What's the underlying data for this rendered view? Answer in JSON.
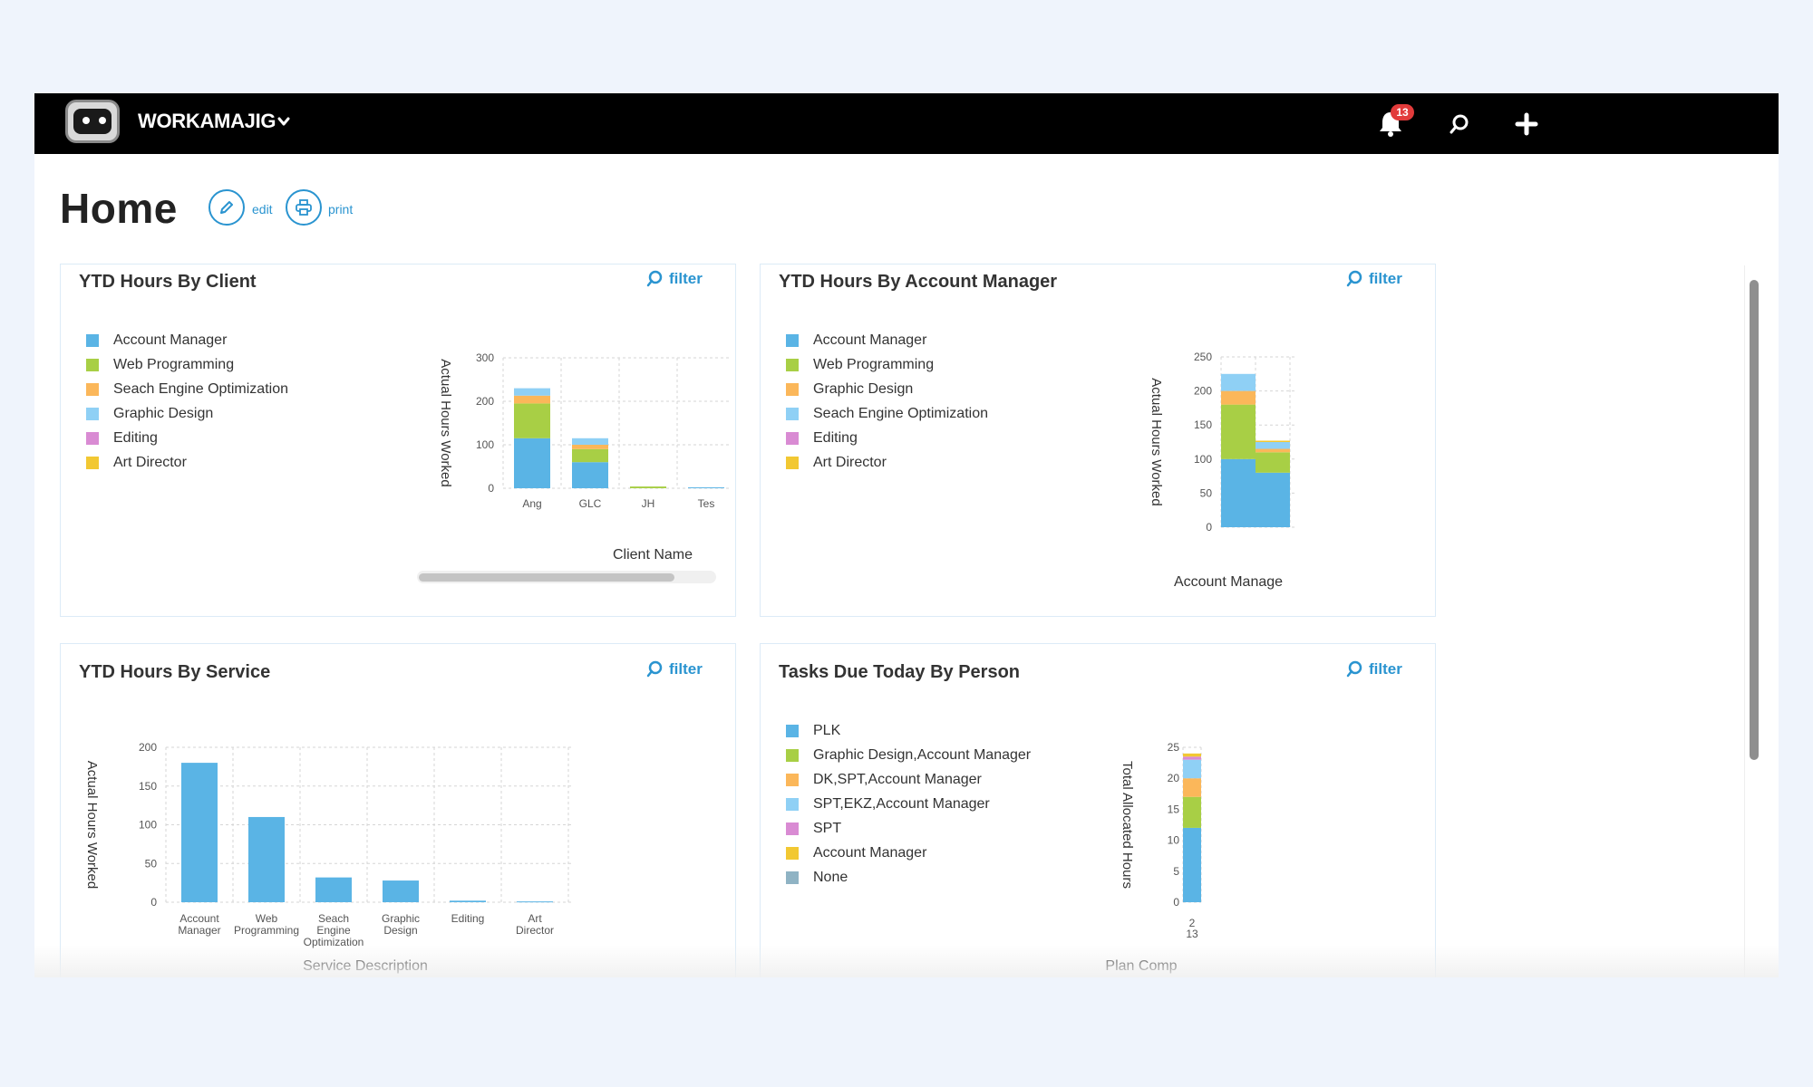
{
  "header": {
    "brand": "WORKAMAJIG",
    "notifications_count": "13"
  },
  "page": {
    "title": "Home",
    "edit_label": "edit",
    "print_label": "print"
  },
  "panels": {
    "client": {
      "title": "YTD Hours By Client",
      "filter_label": "filter"
    },
    "account_manager": {
      "title": "YTD Hours By Account Manager",
      "filter_label": "filter"
    },
    "service": {
      "title": "YTD Hours By Service",
      "filter_label": "filter"
    },
    "tasks": {
      "title": "Tasks Due Today By Person",
      "filter_label": "filter"
    }
  },
  "colors": {
    "blue": "#5ab4e5",
    "green": "#a8cf45",
    "orange": "#fbb75a",
    "lightblue": "#8fd0f5",
    "pink": "#d98bd3",
    "yellow": "#f2c832",
    "gray": "#8fb3c4",
    "accent": "#2a94d0"
  },
  "icons": {
    "logo": "workamajig-robot-logo",
    "brand_menu": "chevron-down-icon",
    "notifications": "bell-icon",
    "search": "search-icon",
    "create": "plus-icon",
    "edit": "pencil-icon",
    "print": "printer-icon",
    "filter": "search-icon"
  },
  "chart_data": [
    {
      "id": "client",
      "type": "bar",
      "stacked": true,
      "categories": [
        "Ang",
        "GLC",
        "JH",
        "Tes"
      ],
      "ylabel": "Actual Hours Worked",
      "xlabel": "Client Name",
      "ylim": [
        0,
        300
      ],
      "yticks": [
        0,
        100,
        200,
        300
      ],
      "grid": true,
      "legend_position": "left",
      "series": [
        {
          "name": "Account Manager",
          "color": "#5ab4e5",
          "values": [
            115,
            60,
            0,
            2
          ]
        },
        {
          "name": "Web Programming",
          "color": "#a8cf45",
          "values": [
            80,
            30,
            4,
            0
          ]
        },
        {
          "name": "Seach Engine Optimization",
          "color": "#fbb75a",
          "values": [
            18,
            10,
            0,
            0
          ]
        },
        {
          "name": "Graphic Design",
          "color": "#8fd0f5",
          "values": [
            17,
            15,
            0,
            0
          ]
        },
        {
          "name": "Editing",
          "color": "#d98bd3",
          "values": [
            0,
            0,
            0,
            0
          ]
        },
        {
          "name": "Art Director",
          "color": "#f2c832",
          "values": [
            0,
            0,
            0,
            0
          ]
        }
      ]
    },
    {
      "id": "account_manager",
      "type": "bar",
      "stacked": true,
      "categories": [
        "",
        ""
      ],
      "ylabel": "Actual Hours Worked",
      "xlabel": "Account Manage",
      "ylim": [
        0,
        250
      ],
      "yticks": [
        0,
        50,
        100,
        150,
        200,
        250
      ],
      "grid": true,
      "legend_position": "left",
      "series": [
        {
          "name": "Account Manager",
          "color": "#5ab4e5",
          "values": [
            100,
            80
          ]
        },
        {
          "name": "Web Programming",
          "color": "#a8cf45",
          "values": [
            80,
            30
          ]
        },
        {
          "name": "Graphic Design",
          "color": "#fbb75a",
          "values": [
            20,
            5
          ]
        },
        {
          "name": "Seach Engine Optimization",
          "color": "#8fd0f5",
          "values": [
            25,
            10
          ]
        },
        {
          "name": "Editing",
          "color": "#d98bd3",
          "values": [
            0,
            0
          ]
        },
        {
          "name": "Art Director",
          "color": "#f2c832",
          "values": [
            0,
            2
          ]
        }
      ]
    },
    {
      "id": "service",
      "type": "bar",
      "categories": [
        "Account Manager",
        "Web Programming",
        "Seach Engine Optimization",
        "Graphic Design",
        "Editing",
        "Art Director"
      ],
      "ylabel": "Actual Hours Worked",
      "xlabel": "Service Description",
      "ylim": [
        0,
        200
      ],
      "yticks": [
        0,
        50,
        100,
        150,
        200
      ],
      "grid": true,
      "color": "#5ab4e5",
      "values": [
        180,
        110,
        32,
        28,
        2,
        1
      ]
    },
    {
      "id": "tasks",
      "type": "bar",
      "stacked": true,
      "categories": [
        "2 13"
      ],
      "ylabel": "Total Allocated Hours",
      "xlabel": "Plan Comp",
      "ylim": [
        0,
        25
      ],
      "yticks": [
        0,
        5,
        10,
        15,
        20,
        25
      ],
      "grid": true,
      "legend_position": "left",
      "series": [
        {
          "name": "PLK",
          "color": "#5ab4e5",
          "values": [
            12
          ]
        },
        {
          "name": "Graphic Design,Account Manager",
          "color": "#a8cf45",
          "values": [
            5
          ]
        },
        {
          "name": "DK,SPT,Account Manager",
          "color": "#fbb75a",
          "values": [
            3
          ]
        },
        {
          "name": "SPT,EKZ,Account Manager",
          "color": "#8fd0f5",
          "values": [
            3
          ]
        },
        {
          "name": "SPT",
          "color": "#d98bd3",
          "values": [
            0.5
          ]
        },
        {
          "name": "Account Manager",
          "color": "#f2c832",
          "values": [
            0.5
          ]
        },
        {
          "name": "None",
          "color": "#8fb3c4",
          "values": [
            0
          ]
        }
      ]
    }
  ]
}
